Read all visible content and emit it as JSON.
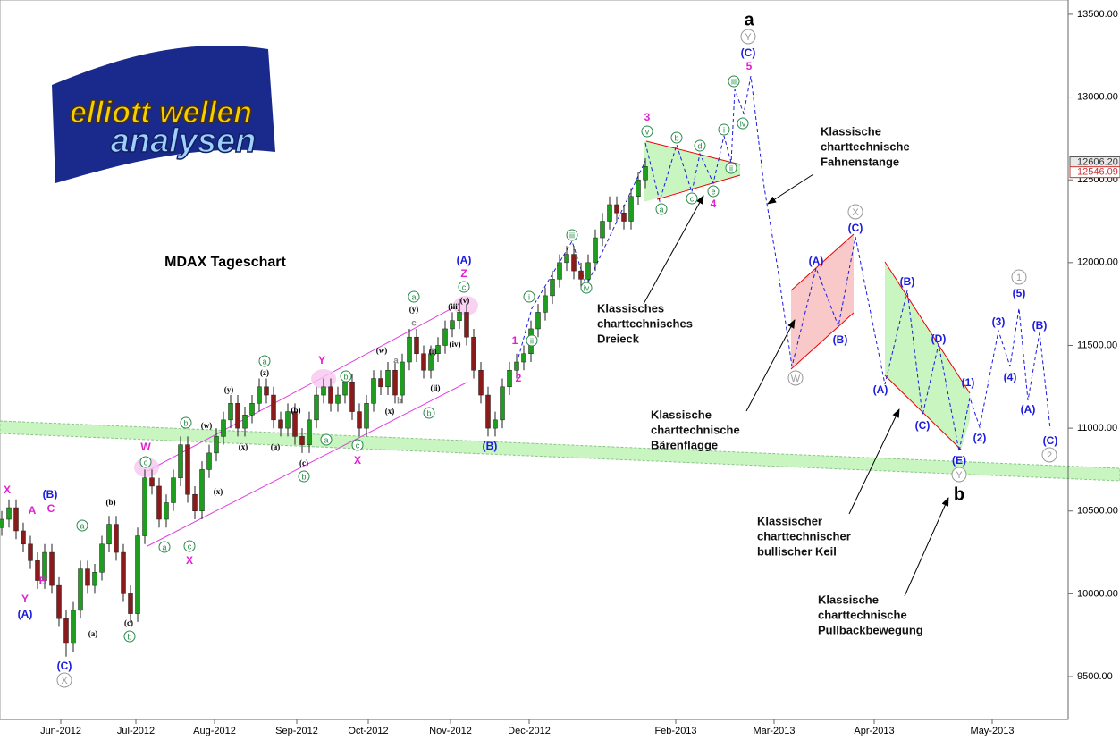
{
  "chart_data": {
    "type": "candlestick",
    "title": "MDAX Tageschart",
    "x": [
      0,
      2,
      4,
      6,
      8,
      10,
      12,
      14,
      16,
      18,
      20,
      22,
      24,
      26,
      28,
      30,
      32,
      34,
      36,
      38,
      40,
      42,
      44,
      46,
      48,
      50,
      52,
      54,
      56,
      58,
      60,
      62,
      64,
      66,
      68,
      70,
      72,
      74,
      76,
      78,
      80,
      82,
      84,
      86,
      88,
      90,
      92,
      94,
      96,
      98,
      100,
      102,
      104,
      106,
      108,
      110,
      112,
      114,
      116,
      118,
      120,
      122,
      124,
      126,
      128,
      130,
      132,
      134,
      136,
      138,
      140,
      142,
      144,
      146,
      148,
      150,
      152,
      154,
      156,
      158,
      160,
      162,
      164,
      166,
      168,
      170,
      172,
      174,
      176,
      178,
      180
    ],
    "open": [
      10400,
      10450,
      10520,
      10380,
      10300,
      10200,
      10080,
      10250,
      10050,
      9850,
      9700,
      9900,
      10150,
      10050,
      10130,
      10300,
      10420,
      10250,
      10000,
      9880,
      10350,
      10700,
      10650,
      10450,
      10550,
      10700,
      10900,
      10600,
      10500,
      10750,
      10850,
      10950,
      11050,
      11150,
      11000,
      11080,
      11150,
      11250,
      11200,
      11050,
      11000,
      11100,
      10950,
      10900,
      11050,
      11200,
      11250,
      11150,
      11200,
      11280,
      11100,
      11000,
      11150,
      11300,
      11250,
      11350,
      11200,
      11400,
      11550,
      11450,
      11350,
      11450,
      11500,
      11600,
      11650,
      11700,
      11550,
      11350,
      11200,
      11000,
      11050,
      11250,
      11350,
      11400,
      11450,
      11600,
      11700,
      11800,
      11900,
      12000,
      12050,
      11950,
      11900,
      12000,
      12150,
      12250,
      12350,
      12300,
      12250,
      12400,
      12500
    ],
    "high": [
      10500,
      10570,
      10570,
      10430,
      10350,
      10250,
      10300,
      10300,
      10100,
      9900,
      9950,
      10200,
      10200,
      10180,
      10350,
      10470,
      10470,
      10300,
      10050,
      10400,
      10750,
      10750,
      10700,
      10600,
      10750,
      10950,
      10950,
      10650,
      10800,
      10900,
      11000,
      11100,
      11200,
      11200,
      11130,
      11200,
      11300,
      11300,
      11250,
      11100,
      11150,
      11150,
      11000,
      11100,
      11250,
      11300,
      11300,
      11250,
      11330,
      11330,
      11150,
      11200,
      11350,
      11350,
      11400,
      11400,
      11450,
      11600,
      11600,
      11500,
      11500,
      11550,
      11650,
      11700,
      11780,
      11750,
      11600,
      11400,
      11250,
      11100,
      11300,
      11400,
      11450,
      11500,
      11650,
      11750,
      11850,
      11950,
      12050,
      12100,
      12100,
      12000,
      12050,
      12200,
      12300,
      12400,
      12400,
      12350,
      12450,
      12550,
      12630
    ],
    "low": [
      10350,
      10400,
      10330,
      10250,
      10150,
      10030,
      10030,
      10000,
      9800,
      9620,
      9650,
      9850,
      10000,
      10000,
      10080,
      10250,
      10200,
      9950,
      9830,
      9830,
      10300,
      10600,
      10400,
      10400,
      10500,
      10650,
      10550,
      10450,
      10450,
      10700,
      10800,
      10900,
      11000,
      10950,
      10950,
      11030,
      11100,
      11150,
      11000,
      10950,
      10950,
      10900,
      10850,
      10850,
      11000,
      11150,
      11100,
      11100,
      11150,
      11050,
      10950,
      10950,
      11100,
      11200,
      11200,
      11150,
      11150,
      11350,
      11400,
      11300,
      11300,
      11400,
      11450,
      11550,
      11600,
      11500,
      11300,
      11150,
      10950,
      10950,
      11000,
      11200,
      11300,
      11350,
      11400,
      11550,
      11650,
      11750,
      11850,
      11950,
      11900,
      11850,
      11850,
      11950,
      12100,
      12200,
      12250,
      12200,
      12200,
      12350,
      12450
    ],
    "close": [
      10450,
      10520,
      10380,
      10300,
      10200,
      10080,
      10250,
      10050,
      9850,
      9700,
      9900,
      10150,
      10050,
      10130,
      10300,
      10420,
      10250,
      10000,
      9880,
      10350,
      10700,
      10650,
      10450,
      10550,
      10700,
      10900,
      10600,
      10500,
      10750,
      10850,
      10950,
      11050,
      11150,
      11000,
      11080,
      11150,
      11250,
      11200,
      11050,
      11000,
      11100,
      10950,
      10900,
      11050,
      11200,
      11250,
      11150,
      11200,
      11280,
      11100,
      11000,
      11150,
      11300,
      11250,
      11350,
      11200,
      11400,
      11550,
      11450,
      11350,
      11450,
      11500,
      11600,
      11650,
      11700,
      11550,
      11350,
      11200,
      11000,
      11050,
      11250,
      11350,
      11400,
      11450,
      11600,
      11700,
      11800,
      11900,
      12000,
      12050,
      11950,
      11900,
      12000,
      12150,
      12250,
      12350,
      12300,
      12250,
      12400,
      12500,
      12580
    ],
    "up_color": "#1e9e1e",
    "down_color": "#8b1a1a",
    "xlim": [
      -0.5,
      298.25
    ],
    "xticks": [
      {
        "value": 16.5,
        "label": "Jun-2012"
      },
      {
        "value": 37.5,
        "label": "Jul-2012"
      },
      {
        "value": 59.5,
        "label": "Aug-2012"
      },
      {
        "value": 82.5,
        "label": "Sep-2012"
      },
      {
        "value": 102.5,
        "label": "Oct-2012"
      },
      {
        "value": 125.5,
        "label": "Nov-2012"
      },
      {
        "value": 147.5,
        "label": "Dec-2012"
      },
      {
        "value": 188.5,
        "label": "Feb-2013"
      },
      {
        "value": 216,
        "label": "Mar-2013"
      },
      {
        "value": 244,
        "label": "Apr-2013"
      },
      {
        "value": 277,
        "label": "May-2013"
      }
    ],
    "ylim": [
      9241,
      13586
    ],
    "yticks": [
      {
        "value": 9500,
        "label": "9500.00"
      },
      {
        "value": 10000,
        "label": "10000.00"
      },
      {
        "value": 10500,
        "label": "10500.00"
      },
      {
        "value": 11000,
        "label": "11000.00"
      },
      {
        "value": 11500,
        "label": "11500.00"
      },
      {
        "value": 12000,
        "label": "12000.00"
      },
      {
        "value": 12500,
        "label": "12500.00"
      },
      {
        "value": 13000,
        "label": "13000.00"
      },
      {
        "value": 13500,
        "label": "13500.00"
      }
    ],
    "price_labels": [
      {
        "value": 12606.2,
        "label": "12606.20"
      },
      {
        "value": 12546.09,
        "label": "12546.09"
      }
    ]
  },
  "logo": {
    "line1": "elliott wellen",
    "line2": "analysen"
  },
  "annotations": [
    [
      "Klassisches",
      "charttechnisches",
      "Dreieck"
    ],
    [
      "Klassische",
      "charttechnische",
      "Fahnenstange"
    ],
    [
      "Klassische",
      "charttechnische",
      "Bärenflagge"
    ],
    [
      "Klassischer",
      "charttechnischer",
      "bullischer Keil"
    ],
    [
      "Klassische",
      "charttechnische",
      "Pullbackbewegung"
    ]
  ],
  "wave_labels": {
    "black_large": [
      "a",
      "b"
    ],
    "gray_circled": [
      "Y",
      "X",
      "W",
      "Y",
      "1",
      "2",
      "X"
    ],
    "blue": [
      "(C)",
      "(A)",
      "(B)",
      "(A)",
      "(B)",
      "(C)",
      "(A)",
      "(B)",
      "(C)",
      "(D)",
      "(E)",
      "(1)",
      "(2)",
      "(3)",
      "(4)",
      "(5)",
      "(A)",
      "(B)",
      "(C)",
      "(B)",
      "(A)",
      "(C)"
    ],
    "magenta": [
      "5",
      "3",
      "4",
      "1",
      "2",
      "Z",
      "W",
      "X",
      "Y",
      "X",
      "X",
      "A",
      "C",
      "Y",
      "B"
    ],
    "green_circled": [
      "v",
      "iii",
      "iv",
      "i",
      "ii",
      "b",
      "d",
      "a",
      "c",
      "e",
      "iii",
      "iv",
      "i",
      "ii",
      "a",
      "c",
      "b",
      "c",
      "b",
      "a",
      "b",
      "a",
      "c",
      "b",
      "a",
      "c",
      "a",
      "b"
    ],
    "black_small": [
      "(iii)",
      "(v)",
      "(iv)",
      "(i)",
      "(ii)",
      "(y)",
      "(w)",
      "(x)",
      "(z)",
      "(y)",
      "(w)",
      "(x)",
      "(a)",
      "(b)",
      "(c)",
      "(x)",
      "(b)",
      "(c)",
      "(a)"
    ],
    "gray_small": [
      "c",
      "a",
      "b"
    ]
  }
}
